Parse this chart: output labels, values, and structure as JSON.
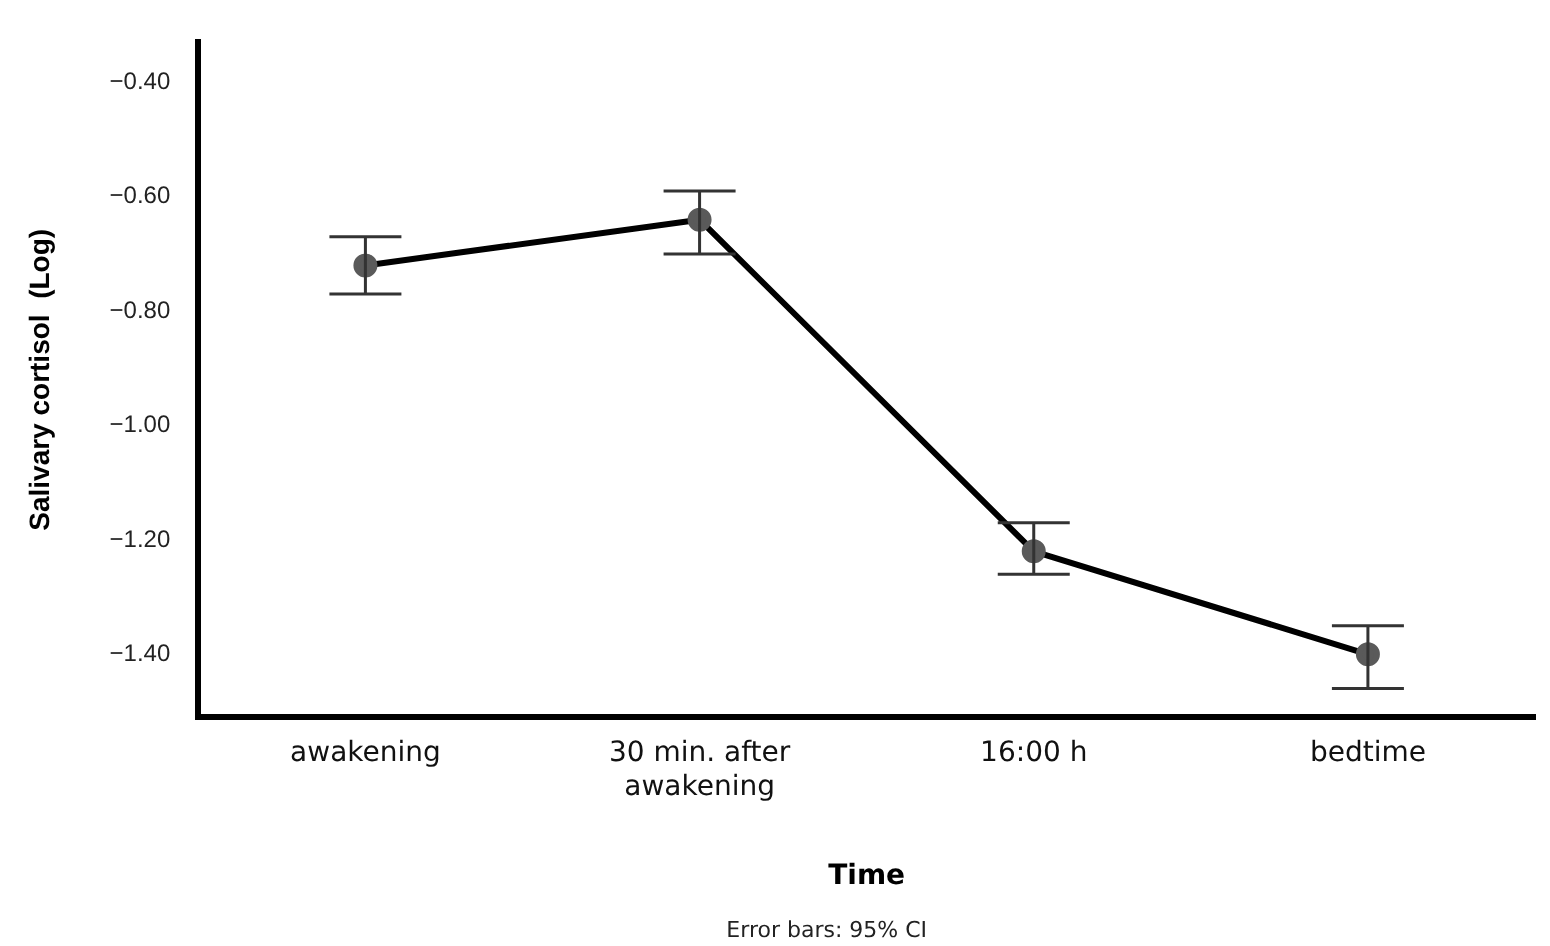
{
  "chart_data": {
    "type": "line",
    "xlabel": "Time",
    "ylabel": "Salivary cortisol  (Log)",
    "categories": [
      "awakening",
      "30 min. after awakening",
      "16:00 h",
      "bedtime"
    ],
    "series": [
      {
        "color": "#000000",
        "values": [
          -0.72,
          -0.64,
          -1.22,
          -1.4
        ],
        "errors": [
          [
            -0.77,
            -0.67
          ],
          [
            -0.7,
            -0.59
          ],
          [
            -1.26,
            -1.17
          ],
          [
            -1.46,
            -1.35
          ]
        ]
      }
    ],
    "ylim": [
      -1.51,
      -0.33
    ],
    "yticks": [
      {
        "value": -0.4,
        "label": "−0.40"
      },
      {
        "value": -0.6,
        "label": "−0.60"
      },
      {
        "value": -0.8,
        "label": "−0.80"
      },
      {
        "value": -1.0,
        "label": "−1.00"
      },
      {
        "value": -1.2,
        "label": "−1.20"
      },
      {
        "value": -1.4,
        "label": "−1.40"
      }
    ],
    "grid": false,
    "legend": false,
    "marker": "circle",
    "line_style": "solid",
    "annotations": [
      "Error bars: 95% CI"
    ]
  }
}
